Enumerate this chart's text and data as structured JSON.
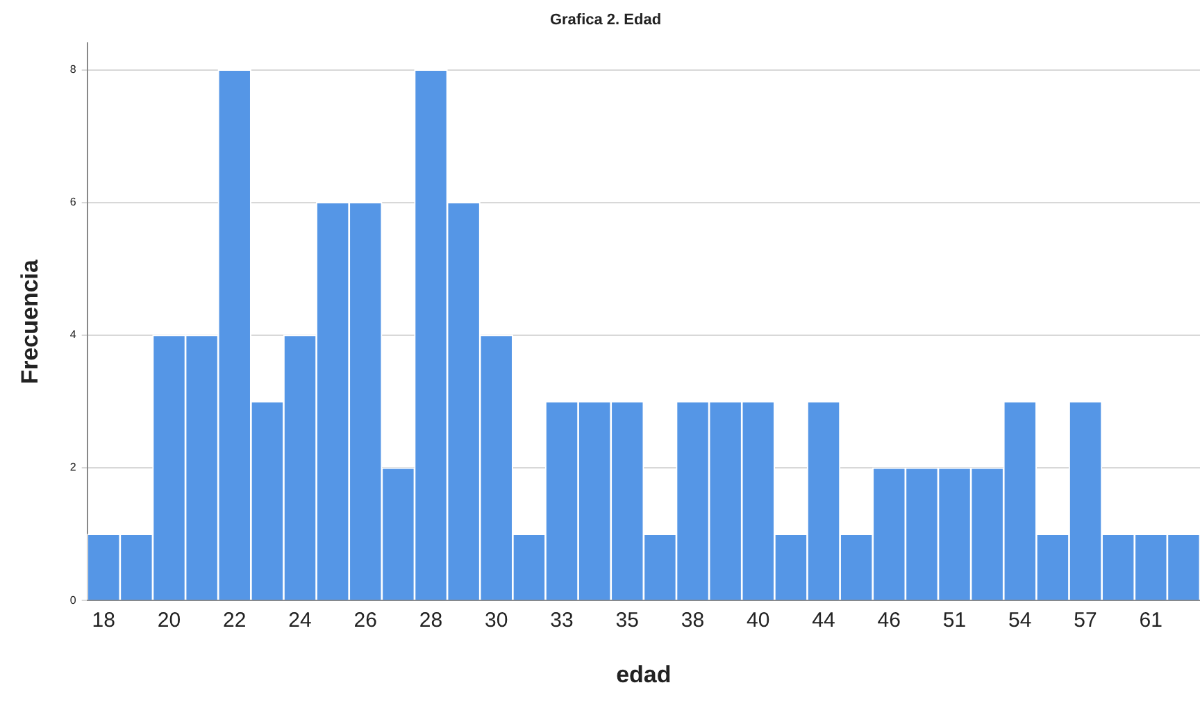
{
  "chart_data": {
    "type": "bar",
    "title": "Grafica 2. Edad",
    "xlabel": "edad",
    "ylabel": "Frecuencia",
    "categories": [
      "18",
      null,
      "20",
      null,
      "22",
      null,
      "24",
      null,
      "26",
      null,
      "28",
      null,
      "30",
      null,
      "33",
      null,
      "35",
      null,
      "38",
      null,
      "40",
      null,
      "44",
      null,
      "46",
      null,
      "51",
      null,
      "54",
      null,
      "57",
      null,
      "61",
      null
    ],
    "values": [
      1,
      1,
      4,
      4,
      8,
      3,
      4,
      6,
      6,
      2,
      8,
      6,
      4,
      1,
      3,
      3,
      3,
      1,
      3,
      3,
      3,
      1,
      3,
      1,
      2,
      2,
      2,
      2,
      3,
      1,
      3,
      1,
      1,
      1
    ],
    "color": "#5596e6",
    "ylim": [
      0,
      8.4
    ],
    "yticks": [
      0,
      2,
      4,
      6,
      8
    ],
    "grid": "y"
  }
}
